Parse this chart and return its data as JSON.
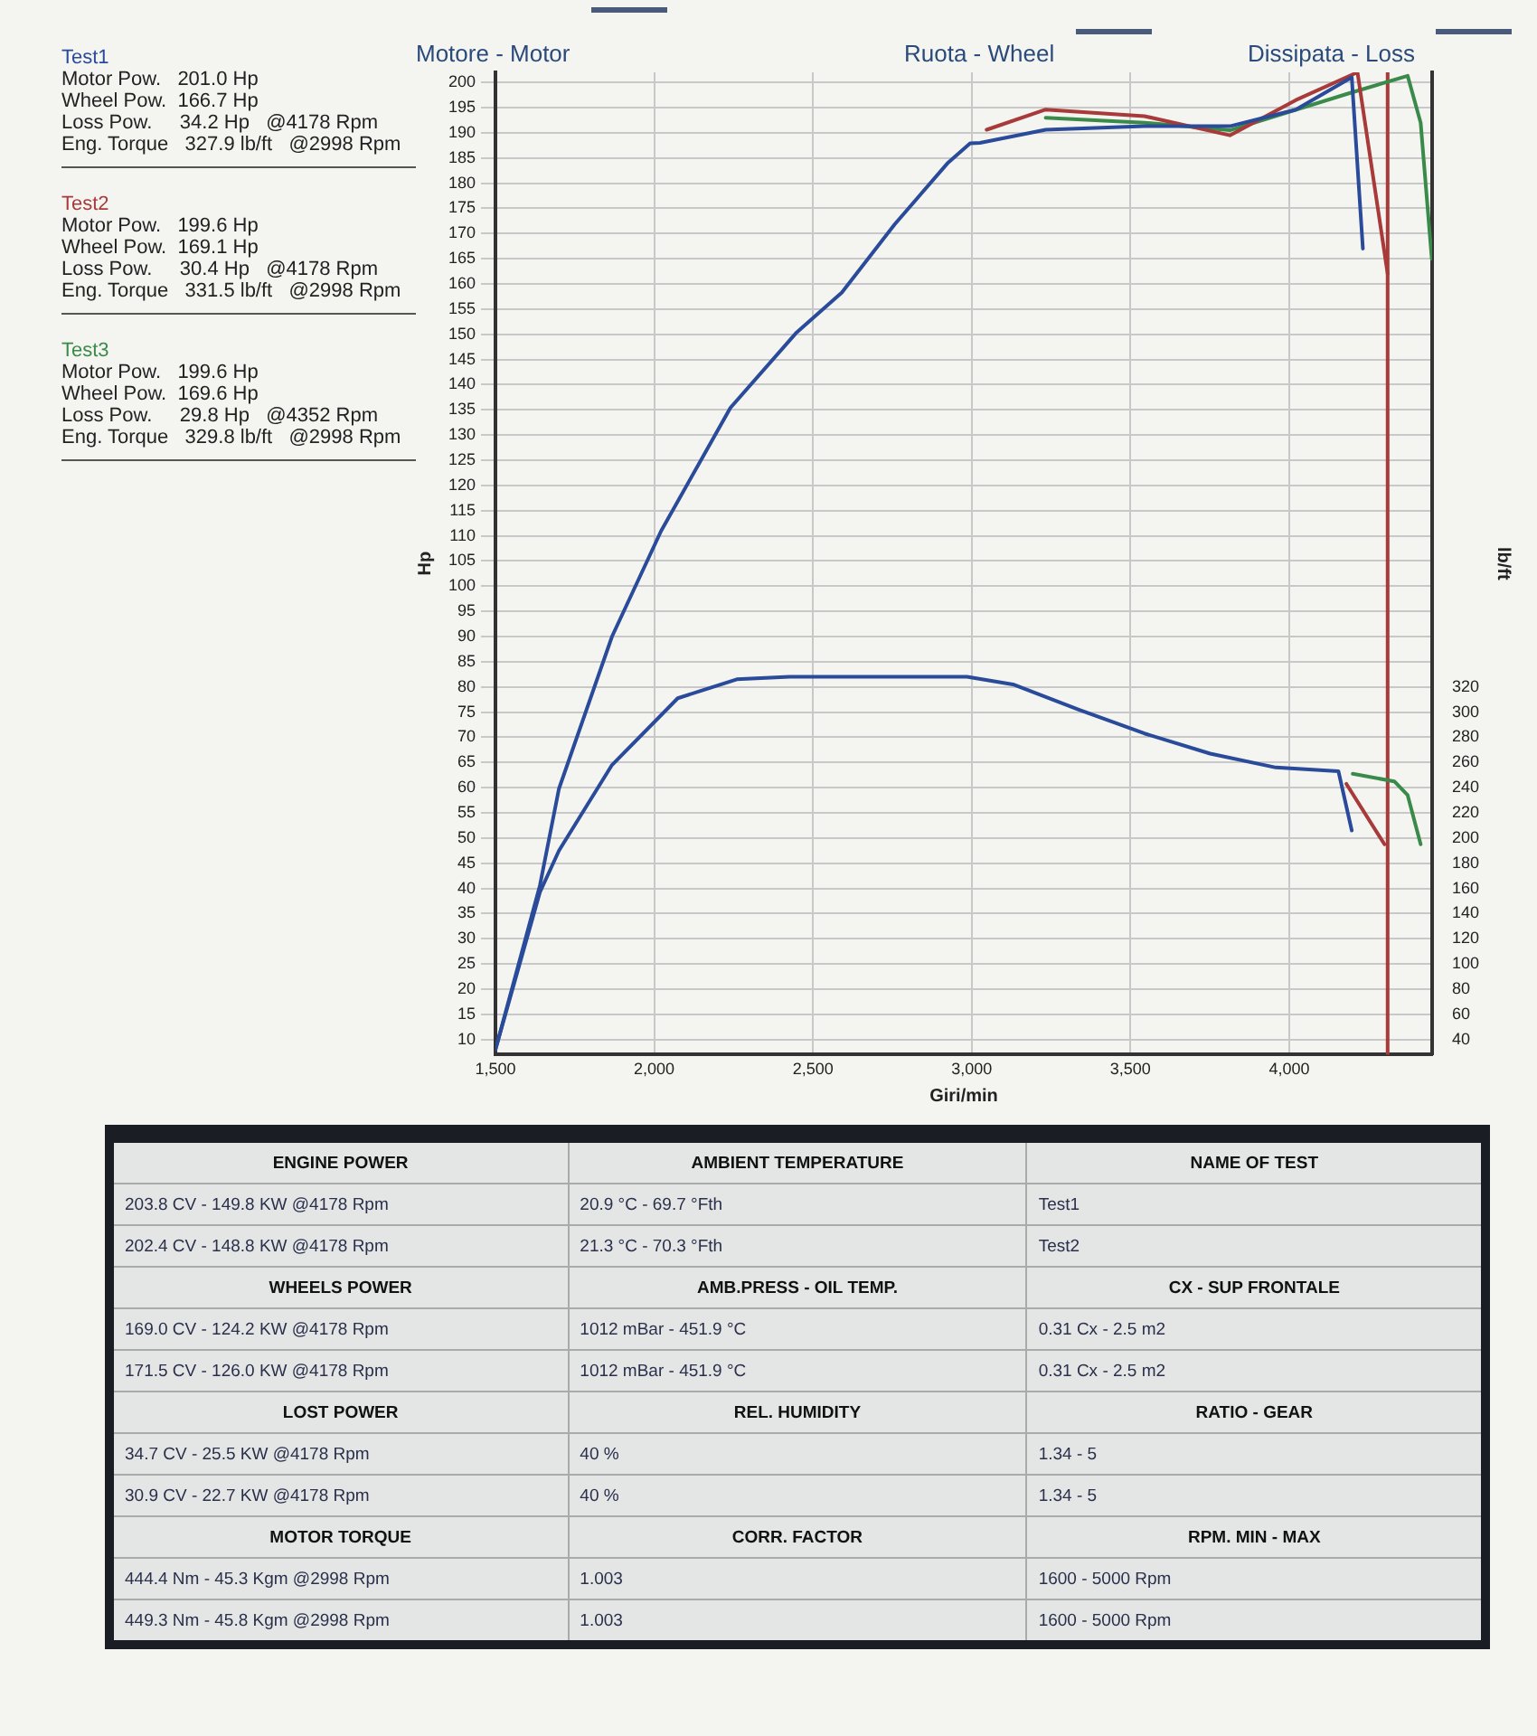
{
  "chart_data": {
    "type": "line",
    "xlabel": "Giri/min",
    "ylabel": "Hp",
    "y2label": "lb/ft",
    "xlim": [
      1500,
      4450
    ],
    "ylim": [
      7,
      202
    ],
    "y2lim": [
      28,
      808
    ],
    "xticks": [
      {
        "value": 1500,
        "label": "1,500"
      },
      {
        "value": 2000,
        "label": "2,000"
      },
      {
        "value": 2500,
        "label": "2,500"
      },
      {
        "value": 3000,
        "label": "3,000"
      },
      {
        "value": 3500,
        "label": "3,500"
      },
      {
        "value": 4000,
        "label": "4,000"
      }
    ],
    "yticks": [
      10,
      15,
      20,
      25,
      30,
      35,
      40,
      45,
      50,
      55,
      60,
      65,
      70,
      75,
      80,
      85,
      90,
      95,
      100,
      105,
      110,
      115,
      120,
      125,
      130,
      135,
      140,
      145,
      150,
      155,
      160,
      165,
      170,
      175,
      180,
      185,
      190,
      195,
      200
    ],
    "y2ticks": [
      40,
      60,
      80,
      100,
      120,
      140,
      160,
      180,
      200,
      220,
      240,
      260,
      280,
      300,
      320
    ],
    "grid": true,
    "legend": false,
    "marker": "none",
    "line_style": "solid",
    "series": [
      {
        "color": "#2a4a9a",
        "x": [
          1500,
          1640,
          1700,
          1867,
          2022,
          2240,
          2446,
          2591,
          2757,
          2923,
          2995,
          3026,
          3233,
          3544,
          3813,
          4021,
          4197,
          4232
        ],
        "values": [
          8,
          40.6,
          59.8,
          90,
          111,
          135.4,
          150.2,
          158.3,
          171.8,
          183.9,
          187.9,
          188,
          190.6,
          191.3,
          191.3,
          194.6,
          201,
          167
        ]
      },
      {
        "color": "#a83a3a",
        "x": [
          3047,
          3233,
          3544,
          3813,
          4021,
          4215,
          4310
        ],
        "values": [
          190.6,
          194.6,
          193.3,
          189.5,
          196.5,
          202,
          162
        ]
      },
      {
        "color": "#3a8a4a",
        "x": [
          3233,
          3544,
          3813,
          4197,
          4373,
          4414,
          4449
        ],
        "values": [
          193,
          192,
          190.5,
          198,
          201.3,
          192,
          165
        ]
      },
      {
        "axis": "y2",
        "color": "#2a4a9a",
        "x": [
          1500,
          1640,
          1700,
          1867,
          2074,
          2260,
          2426,
          2716,
          2985,
          3130,
          3337,
          3544,
          3751,
          3958,
          4155,
          4197
        ],
        "values": [
          32,
          157,
          190,
          258,
          311,
          326,
          328,
          328,
          328,
          322,
          302,
          283,
          267,
          256,
          253,
          206
        ]
      },
      {
        "axis": "y2",
        "color": "#a83a3a",
        "x": [
          4180,
          4300
        ],
        "values": [
          243,
          195
        ]
      },
      {
        "axis": "y2",
        "color": "#3a8a4a",
        "x": [
          4200,
          4331,
          4373,
          4414
        ],
        "values": [
          251,
          245,
          234,
          195
        ]
      }
    ],
    "ref_lines": [
      {
        "axis": "x",
        "value": 4310,
        "color": "#a83a3a"
      }
    ],
    "annotations": [
      "Test1",
      "Motor Pow.   201.0 Hp",
      "Wheel Pow.  166.7 Hp",
      "Loss Pow.     34.2 Hp   @4178 Rpm",
      "Eng. Torque   327.9 lb/ft   @2998 Rpm",
      "Test2",
      "Motor Pow.   199.6 Hp",
      "Wheel Pow.  169.1 Hp",
      "Loss Pow.     30.4 Hp   @4178 Rpm",
      "Eng. Torque   331.5 lb/ft   @2998 Rpm",
      "Test3",
      "Motor Pow.   199.6 Hp",
      "Wheel Pow.  169.6 Hp",
      "Loss Pow.     29.8 Hp   @4352 Rpm",
      "Eng. Torque   329.8 lb/ft   @2998 Rpm",
      "Motore - Motor",
      "Ruota - Wheel",
      "Dissipata - Loss",
      "ENGINE POWER",
      "AMBIENT TEMPERATURE",
      "NAME OF TEST",
      "203.8 CV - 149.8 KW  @4178 Rpm",
      "20.9 °C - 69.7 °Fth",
      "Test1",
      "202.4 CV - 148.8 KW  @4178 Rpm",
      "21.3 °C - 70.3 °Fth",
      "Test2",
      "WHEELS POWER",
      "AMB.PRESS - OIL TEMP.",
      "CX - SUP FRONTALE",
      "169.0 CV - 124.2 KW  @4178 Rpm",
      "1012 mBar - 451.9 °C",
      "0.31 Cx - 2.5 m2",
      "171.5 CV - 126.0 KW  @4178 Rpm",
      "1012 mBar - 451.9 °C",
      "0.31 Cx - 2.5 m2",
      "LOST POWER",
      "REL. HUMIDITY",
      "RATIO - GEAR",
      "34.7 CV - 25.5 KW  @4178 Rpm",
      "40 %",
      "1.34 - 5",
      "30.9 CV - 22.7 KW  @4178 Rpm",
      "40 %",
      "1.34 - 5",
      "MOTOR TORQUE",
      "CORR. FACTOR",
      "RPM. MIN - MAX",
      "444.4 Nm - 45.3 Kgm  @2998 Rpm",
      "1.003",
      "1600 - 5000 Rpm",
      "449.3 Nm - 45.8 Kgm  @2998 Rpm",
      "1.003",
      "1600 - 5000 Rpm"
    ]
  }
}
